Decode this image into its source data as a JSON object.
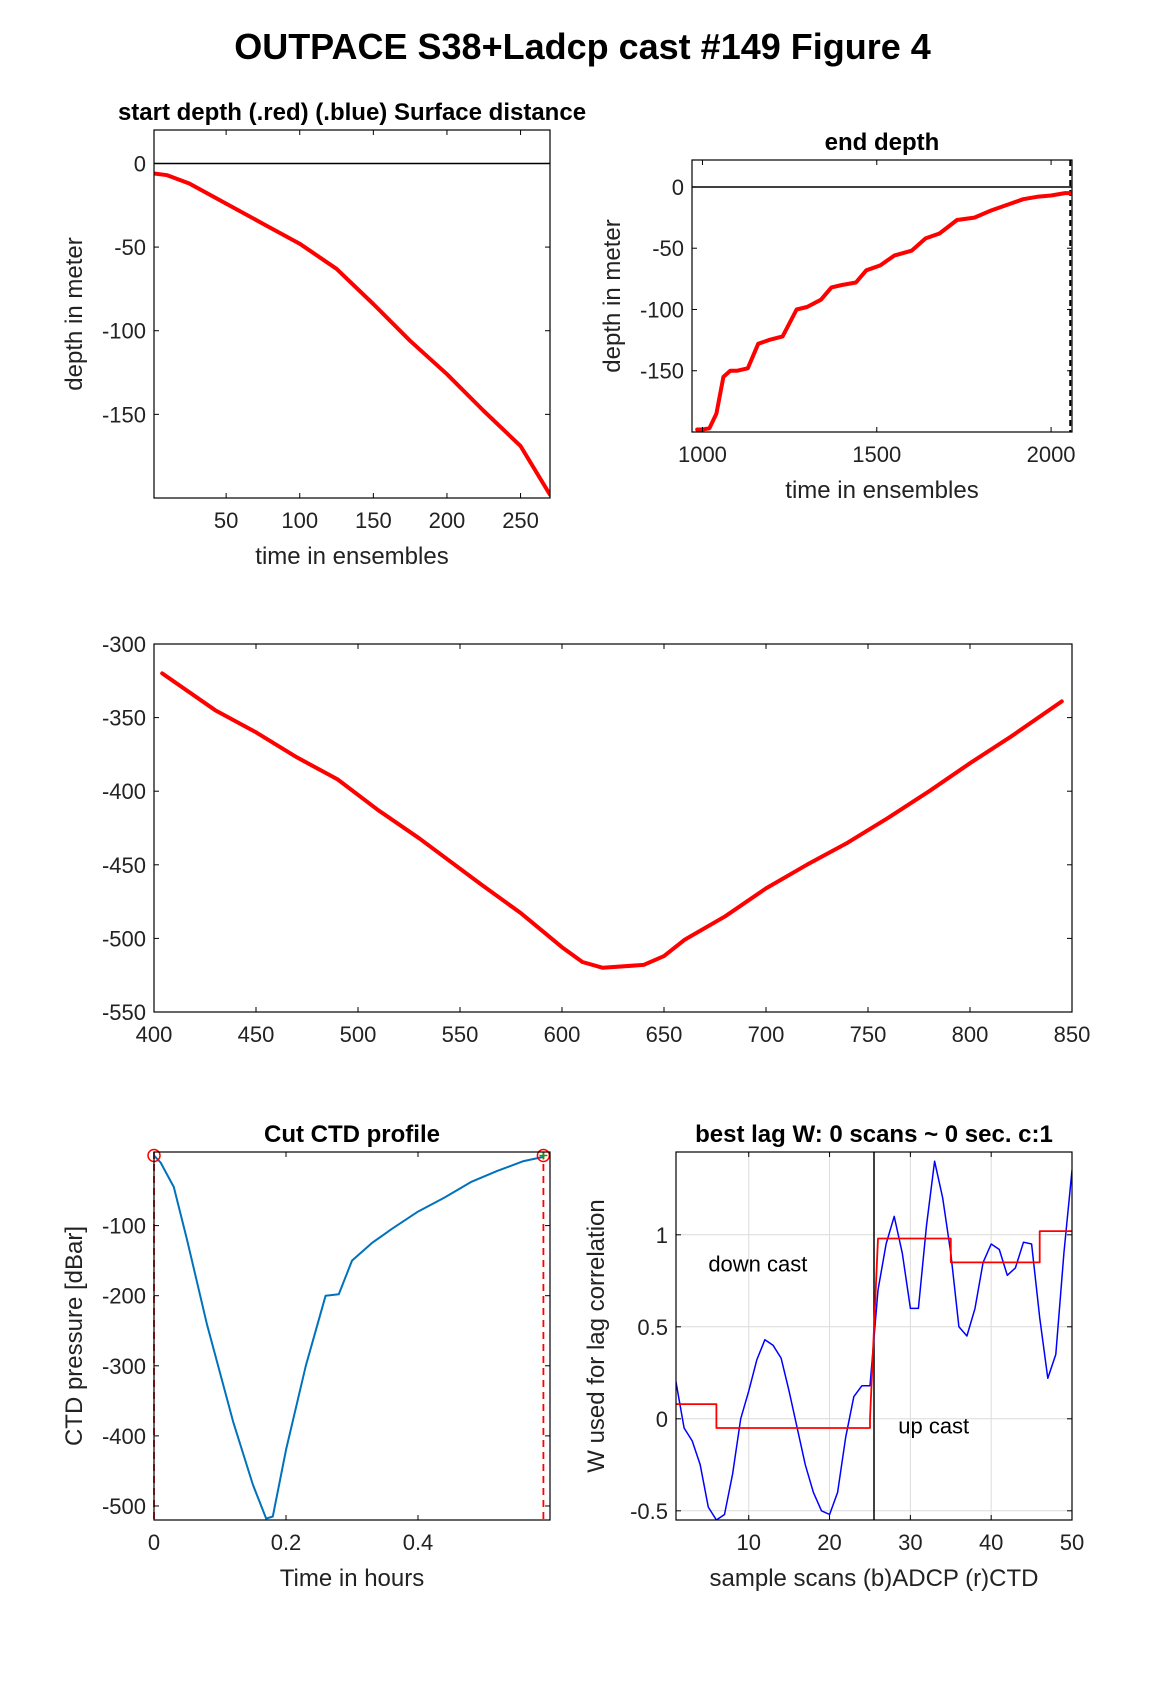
{
  "figure": {
    "title": "OUTPACE S38+Ladcp cast #149    Figure 4"
  },
  "colors": {
    "red": "#ff0000",
    "blue": "#0000ff",
    "profile": "#0072bd",
    "green": "#00aa00",
    "grid": "#dcdcdc",
    "axis": "#000000"
  },
  "chart_data": [
    {
      "id": "start",
      "type": "line",
      "title": "start depth (.red) (.blue) Surface distance",
      "xlabel": "time in ensembles",
      "ylabel": "depth in meter",
      "xlim": [
        1,
        270
      ],
      "ylim": [
        -200,
        20
      ],
      "xticks": [
        50,
        100,
        150,
        200,
        250
      ],
      "yticks": [
        0,
        -50,
        -100,
        -150
      ],
      "grid": false,
      "hlines": [
        0
      ],
      "series": [
        {
          "color": "red",
          "width": 4,
          "x": [
            1,
            10,
            25,
            50,
            75,
            100,
            125,
            150,
            175,
            200,
            225,
            250,
            270
          ],
          "y": [
            -6,
            -7,
            -12,
            -24,
            -36,
            -48,
            -63,
            -84,
            -106,
            -126,
            -148,
            -169,
            -198
          ]
        }
      ]
    },
    {
      "id": "end",
      "type": "line",
      "title": "end depth",
      "xlabel": "time in ensembles",
      "ylabel": "depth in meter",
      "xlim": [
        970,
        2060
      ],
      "ylim": [
        -200,
        22
      ],
      "xticks": [
        1000,
        1500,
        2000
      ],
      "yticks": [
        0,
        -50,
        -100,
        -150
      ],
      "grid": false,
      "hlines": [
        0
      ],
      "vlines_dashed": [
        2055
      ],
      "series": [
        {
          "color": "red",
          "width": 4,
          "x": [
            985,
            1000,
            1020,
            1040,
            1060,
            1080,
            1100,
            1130,
            1160,
            1190,
            1230,
            1270,
            1300,
            1340,
            1370,
            1400,
            1440,
            1470,
            1510,
            1550,
            1600,
            1640,
            1680,
            1730,
            1780,
            1830,
            1880,
            1920,
            1960,
            2000,
            2040,
            2055
          ],
          "y": [
            -198,
            -198,
            -197,
            -185,
            -155,
            -150,
            -150,
            -148,
            -128,
            -125,
            -122,
            -100,
            -98,
            -92,
            -82,
            -80,
            -78,
            -68,
            -64,
            -56,
            -52,
            -42,
            -38,
            -27,
            -25,
            -19,
            -14,
            -10,
            -8,
            -7,
            -5,
            -5
          ]
        }
      ]
    },
    {
      "id": "middle",
      "type": "line",
      "title": "",
      "xlabel": "",
      "ylabel": "",
      "xlim": [
        400,
        850
      ],
      "ylim": [
        -550,
        -300
      ],
      "xticks": [
        400,
        450,
        500,
        550,
        600,
        650,
        700,
        750,
        800,
        850
      ],
      "yticks": [
        -300,
        -350,
        -400,
        -450,
        -500,
        -550
      ],
      "grid": false,
      "series": [
        {
          "color": "red",
          "width": 4,
          "x": [
            404,
            430,
            450,
            470,
            490,
            510,
            530,
            560,
            580,
            600,
            610,
            620,
            640,
            650,
            660,
            680,
            700,
            720,
            740,
            760,
            780,
            800,
            820,
            845
          ],
          "y": [
            -320,
            -345,
            -360,
            -377,
            -392,
            -413,
            -432,
            -463,
            -483,
            -506,
            -516,
            -520,
            -518,
            -512,
            -501,
            -485,
            -466,
            -450,
            -435,
            -418,
            -400,
            -381,
            -363,
            -339
          ]
        }
      ]
    },
    {
      "id": "cut",
      "type": "line",
      "title": "Cut CTD profile",
      "xlabel": "Time in hours",
      "ylabel": "CTD pressure [dBar]",
      "xlim": [
        0,
        0.6
      ],
      "ylim": [
        -520,
        5
      ],
      "xticks": [
        0,
        0.2,
        0.4
      ],
      "yticks": [
        -100,
        -200,
        -300,
        -400,
        -500
      ],
      "grid": false,
      "vlines_dashed_red": [
        0,
        0.59
      ],
      "markers_red": [
        {
          "x": 0,
          "y": 0
        },
        {
          "x": 0.59,
          "y": 0
        }
      ],
      "series": [
        {
          "color": "profile",
          "width": 2,
          "x": [
            0,
            0.01,
            0.03,
            0.05,
            0.08,
            0.12,
            0.15,
            0.17,
            0.18,
            0.2,
            0.23,
            0.26,
            0.28,
            0.3,
            0.33,
            0.36,
            0.4,
            0.44,
            0.48,
            0.52,
            0.56,
            0.59
          ],
          "y": [
            0,
            -10,
            -45,
            -120,
            -240,
            -380,
            -470,
            -518,
            -515,
            -420,
            -300,
            -200,
            -198,
            -150,
            -125,
            -105,
            -80,
            -60,
            -38,
            -22,
            -8,
            -2
          ]
        }
      ]
    },
    {
      "id": "lag",
      "type": "line",
      "title": "best lag W: 0 scans ~ 0 sec.  c:1",
      "xlabel": "sample scans (b)ADCP (r)CTD",
      "ylabel": "W used for lag correlation",
      "xlim": [
        1,
        50
      ],
      "ylim": [
        -0.55,
        1.45
      ],
      "xticks": [
        10,
        20,
        30,
        40,
        50
      ],
      "yticks": [
        -0.5,
        0,
        0.5,
        1
      ],
      "grid": true,
      "vlines": [
        25.5
      ],
      "annotations": [
        {
          "text": "down cast",
          "x": 5,
          "y": 0.8
        },
        {
          "text": "up cast",
          "x": 28.5,
          "y": -0.08
        }
      ],
      "series": [
        {
          "color": "blue",
          "width": 1.5,
          "x": [
            1,
            2,
            3,
            4,
            5,
            6,
            7,
            8,
            9,
            10,
            11,
            12,
            13,
            14,
            15,
            16,
            17,
            18,
            19,
            20,
            21,
            22,
            23,
            24,
            25,
            26,
            27,
            28,
            29,
            30,
            31,
            32,
            33,
            34,
            35,
            36,
            37,
            38,
            39,
            40,
            41,
            42,
            43,
            44,
            45,
            46,
            47,
            48,
            49,
            50
          ],
          "y": [
            0.2,
            -0.05,
            -0.12,
            -0.25,
            -0.48,
            -0.55,
            -0.52,
            -0.3,
            0,
            0.15,
            0.32,
            0.43,
            0.4,
            0.33,
            0.15,
            -0.05,
            -0.25,
            -0.4,
            -0.5,
            -0.52,
            -0.4,
            -0.1,
            0.12,
            0.18,
            0.18,
            0.7,
            0.95,
            1.1,
            0.9,
            0.6,
            0.6,
            1.05,
            1.4,
            1.2,
            0.9,
            0.5,
            0.45,
            0.6,
            0.85,
            0.95,
            0.92,
            0.78,
            0.82,
            0.96,
            0.95,
            0.55,
            0.22,
            0.35,
            0.9,
            1.35
          ]
        },
        {
          "color": "red",
          "width": 1.8,
          "step": true,
          "x": [
            1,
            6,
            6,
            25,
            25,
            26,
            26,
            35,
            35,
            46,
            46,
            50
          ],
          "y": [
            0.08,
            0.08,
            -0.05,
            -0.05,
            0,
            0.98,
            0.98,
            0.98,
            0.85,
            0.85,
            1.02,
            1.02
          ]
        }
      ]
    }
  ]
}
